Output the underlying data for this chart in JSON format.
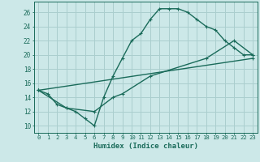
{
  "xlabel": "Humidex (Indice chaleur)",
  "bg_color": "#cce8e8",
  "grid_color": "#aacece",
  "line_color": "#1a6b5a",
  "ylim": [
    9,
    27.5
  ],
  "xlim": [
    -0.5,
    23.5
  ],
  "yticks": [
    10,
    12,
    14,
    16,
    18,
    20,
    22,
    24,
    26
  ],
  "xticks": [
    0,
    1,
    2,
    3,
    4,
    5,
    6,
    7,
    8,
    9,
    10,
    11,
    12,
    13,
    14,
    15,
    16,
    17,
    18,
    19,
    20,
    21,
    22,
    23
  ],
  "line1_x": [
    0,
    1,
    2,
    3,
    4,
    5,
    6,
    7,
    8,
    9,
    10,
    11,
    12,
    13,
    14,
    15,
    16,
    17,
    18,
    19,
    20,
    21,
    22,
    23
  ],
  "line1_y": [
    15,
    14.5,
    13,
    12.5,
    12,
    11,
    10,
    14,
    17,
    19.5,
    22,
    23,
    25,
    26.5,
    26.5,
    26.5,
    26,
    25,
    24,
    23.5,
    22,
    21,
    20,
    20
  ],
  "line2_x": [
    0,
    23
  ],
  "line2_y": [
    15,
    19.5
  ],
  "line3_x": [
    0,
    3,
    6,
    8,
    9,
    12,
    18,
    21,
    23
  ],
  "line3_y": [
    15,
    12.5,
    12,
    14,
    14.5,
    17,
    19.5,
    22,
    20
  ]
}
